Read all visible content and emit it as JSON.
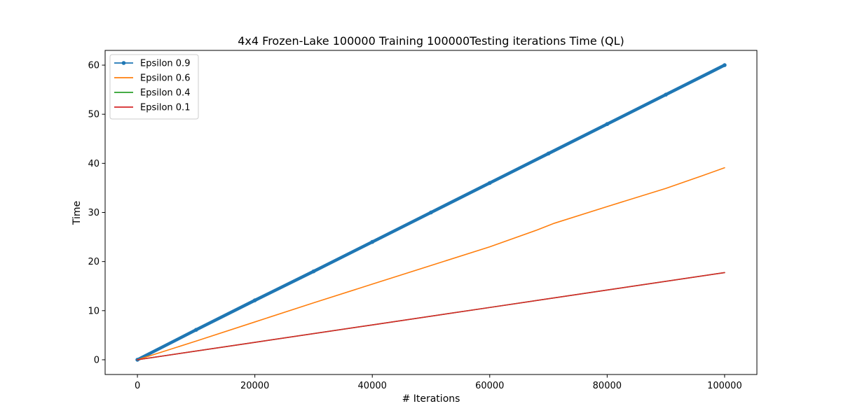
{
  "chart_data": {
    "type": "line",
    "title": "4x4 Frozen-Lake 100000 Training 100000Testing iterations  Time (QL)",
    "xlabel": "# Iterations",
    "ylabel": "Time",
    "xlim": [
      -5500,
      105500
    ],
    "ylim": [
      -3,
      63
    ],
    "xticks": [
      0,
      20000,
      40000,
      60000,
      80000,
      100000
    ],
    "yticks": [
      0,
      10,
      20,
      30,
      40,
      50,
      60
    ],
    "grid": false,
    "legend_position": "top-left",
    "series": [
      {
        "name": "Epsilon 0.9",
        "color": "#1f77b4",
        "marker": "dot",
        "x": [
          0,
          10000,
          20000,
          30000,
          40000,
          50000,
          60000,
          70000,
          80000,
          90000,
          100000
        ],
        "y": [
          0,
          6.1,
          12.1,
          18.0,
          24.0,
          30.0,
          36.0,
          42.0,
          48.0,
          54.0,
          60.0
        ]
      },
      {
        "name": "Epsilon 0.6",
        "color": "#ff7f0e",
        "marker": "none",
        "x": [
          0,
          10000,
          20000,
          30000,
          40000,
          50000,
          60000,
          68000,
          71000,
          80000,
          90000,
          96000,
          100000
        ],
        "y": [
          0,
          3.8,
          7.7,
          11.6,
          15.4,
          19.2,
          23.0,
          26.4,
          27.8,
          31.2,
          34.9,
          37.4,
          39.1
        ]
      },
      {
        "name": "Epsilon 0.4",
        "color": "#2ca02c",
        "marker": "none",
        "x": [
          0,
          20000,
          40000,
          60000,
          80000,
          100000
        ],
        "y": [
          0,
          3.55,
          7.1,
          10.65,
          14.2,
          17.75
        ]
      },
      {
        "name": "Epsilon 0.1",
        "color": "#d62728",
        "marker": "none",
        "x": [
          0,
          20000,
          40000,
          60000,
          80000,
          100000
        ],
        "y": [
          0,
          3.55,
          7.1,
          10.65,
          14.2,
          17.75
        ]
      }
    ]
  }
}
